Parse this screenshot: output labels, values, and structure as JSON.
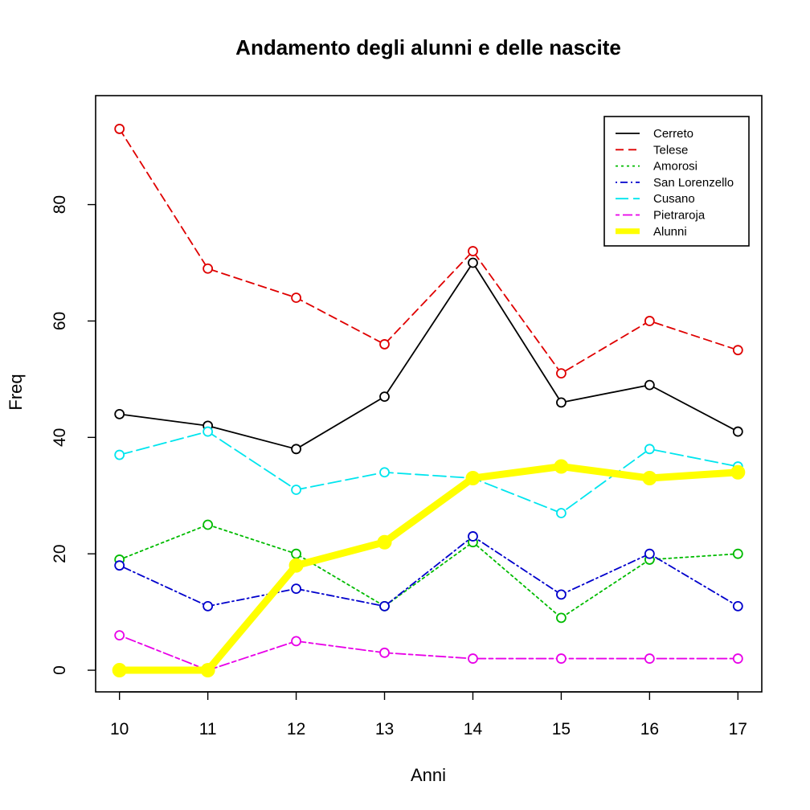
{
  "chart_data": {
    "type": "line",
    "title": "Andamento degli alunni e delle nascite",
    "xlabel": "Anni",
    "ylabel": "Freq",
    "x": [
      10,
      11,
      12,
      13,
      14,
      15,
      16,
      17
    ],
    "xlim": [
      9.73,
      17.27
    ],
    "ylim": [
      -3.72,
      98.72
    ],
    "yticks": [
      0,
      20,
      40,
      60,
      80
    ],
    "xticks": [
      10,
      11,
      12,
      13,
      14,
      15,
      16,
      17
    ],
    "grid": false,
    "legend_position": "top-right",
    "series": [
      {
        "name": "Cerreto",
        "color": "#000000",
        "dash": "solid",
        "values": [
          44,
          42,
          38,
          47,
          70,
          46,
          49,
          41
        ]
      },
      {
        "name": "Telese",
        "color": "#DF0000",
        "dash": "dashed",
        "values": [
          93,
          69,
          64,
          56,
          72,
          51,
          60,
          55
        ]
      },
      {
        "name": "Amorosi",
        "color": "#00BB00",
        "dash": "dotted",
        "values": [
          19,
          25,
          20,
          11,
          22,
          9,
          19,
          20
        ]
      },
      {
        "name": "San Lorenzello",
        "color": "#0000CC",
        "dash": "dotdash",
        "values": [
          18,
          11,
          14,
          11,
          23,
          13,
          20,
          11
        ]
      },
      {
        "name": "Cusano",
        "color": "#00E5EE",
        "dash": "longdash",
        "values": [
          37,
          41,
          31,
          34,
          33,
          27,
          38,
          35
        ]
      },
      {
        "name": "Pietraroja",
        "color": "#E800E8",
        "dash": "twodash",
        "values": [
          6,
          0,
          5,
          3,
          2,
          2,
          2,
          2
        ]
      },
      {
        "name": "Alunni",
        "color": "#FFFF00",
        "dash": "solid",
        "thick": true,
        "values": [
          0,
          0,
          18,
          22,
          33,
          35,
          33,
          34
        ]
      }
    ]
  }
}
